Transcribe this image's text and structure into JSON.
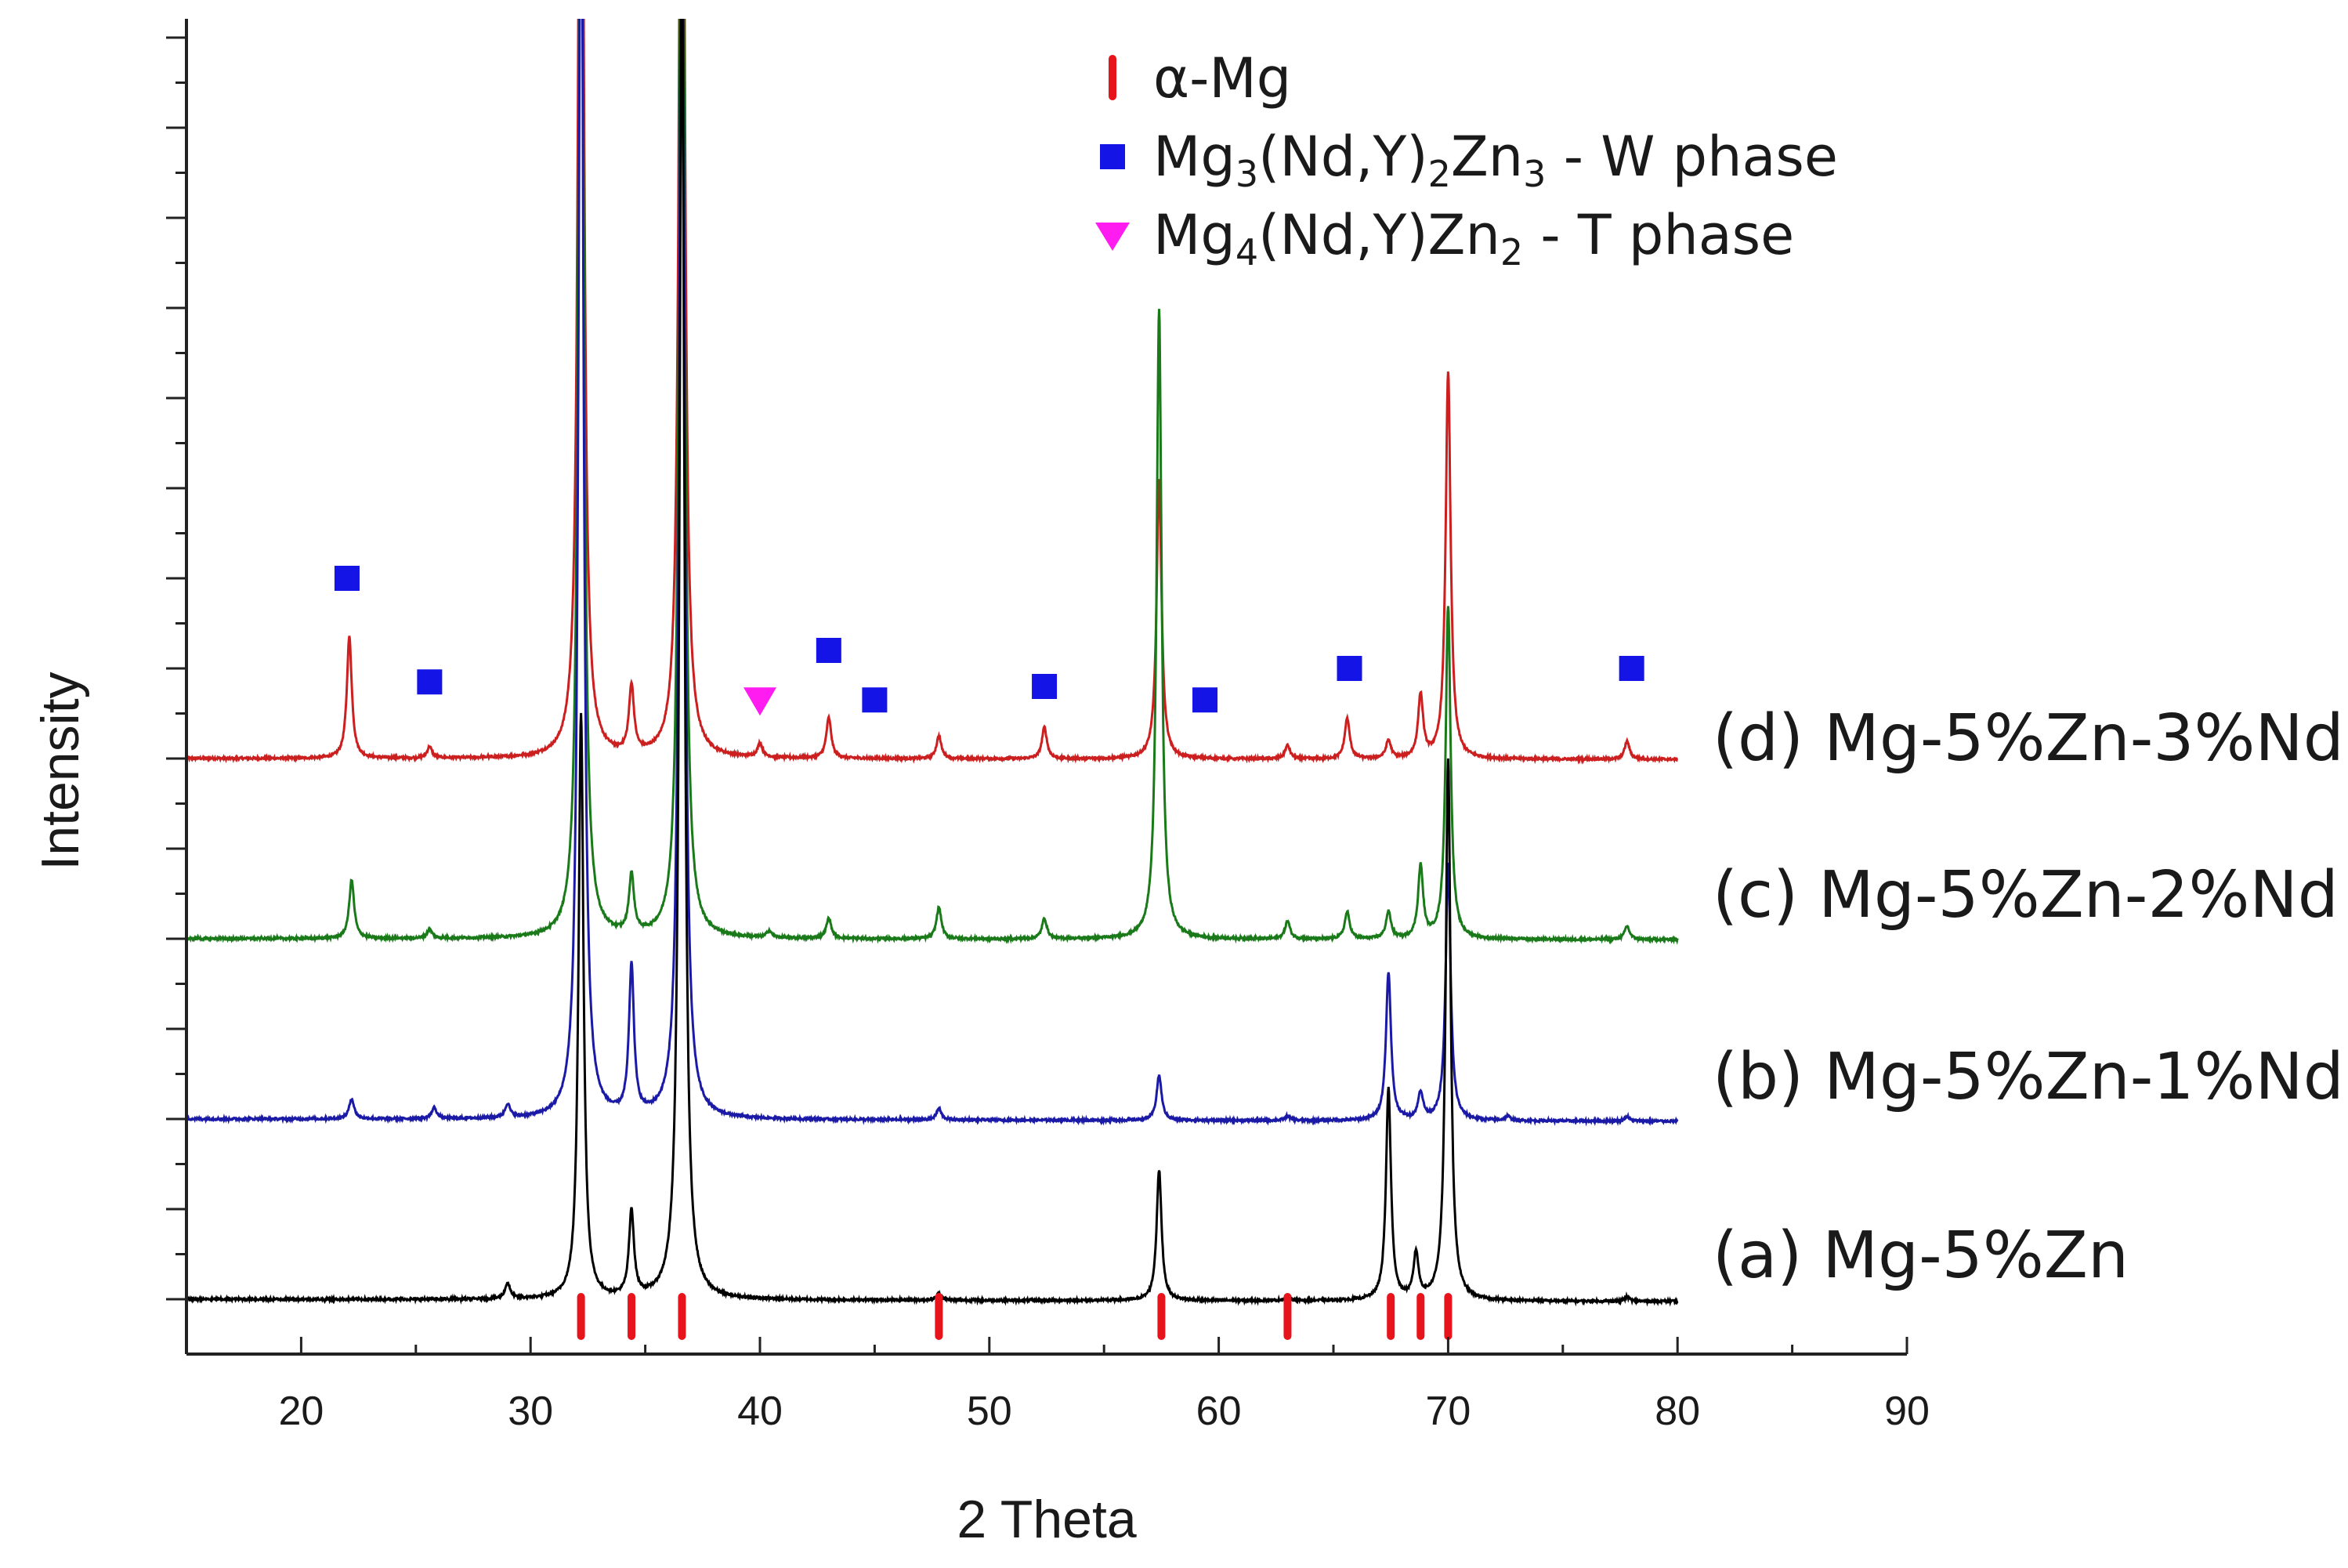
{
  "chart_data": {
    "type": "line",
    "title": "",
    "xlabel": "2 Theta",
    "ylabel": "Intensity",
    "xlim": [
      15,
      90
    ],
    "xticks": [
      20,
      30,
      40,
      50,
      60,
      70,
      80,
      90
    ],
    "grid": false,
    "y_tick_labels": false,
    "legend": {
      "placement": "top-center",
      "entries": [
        {
          "marker": "bar",
          "color": "#e8141c",
          "label": "α-Mg"
        },
        {
          "marker": "square",
          "color": "#1414e6",
          "base": "Mg",
          "sub1": "3",
          "mid": "(Nd,Y)",
          "sub2": "2",
          "mid2": "Zn",
          "sub3": "3",
          "tail": "- W phase",
          "label": "Mg3(Nd,Y)2Zn3 - W phase"
        },
        {
          "marker": "triangle",
          "color": "#ff1cf0",
          "base": "Mg",
          "sub1": "4",
          "mid": "(Nd,Y)Zn",
          "sub2": "2",
          "mid2": "",
          "sub3": "",
          "tail": "- T phase",
          "label": "Mg4(Nd,Y)Zn2 - T phase"
        }
      ]
    },
    "series": [
      {
        "name": "(a) Mg-5%Zn",
        "color": "#000000",
        "baseline": 0,
        "slope": -0.05,
        "noise": 0.05,
        "peaks": [
          [
            29.0,
            0.35
          ],
          [
            32.2,
            13.0
          ],
          [
            34.4,
            1.9
          ],
          [
            36.6,
            30.0
          ],
          [
            47.8,
            0.15
          ],
          [
            57.4,
            2.9
          ],
          [
            63.0,
            0.1
          ],
          [
            67.4,
            4.7
          ],
          [
            68.6,
            1.0
          ],
          [
            70.0,
            12.0
          ],
          [
            77.8,
            0.1
          ]
        ]
      },
      {
        "name": "(b) Mg-5%Zn-1%Nd",
        "color": "#1a1aa6",
        "baseline": 4,
        "slope": -0.05,
        "noise": 0.05,
        "peaks": [
          [
            22.2,
            0.45
          ],
          [
            25.8,
            0.25
          ],
          [
            29.0,
            0.3
          ],
          [
            32.2,
            30.0
          ],
          [
            34.4,
            3.3
          ],
          [
            36.6,
            30.0
          ],
          [
            47.8,
            0.25
          ],
          [
            57.4,
            1.0
          ],
          [
            63.0,
            0.1
          ],
          [
            67.4,
            3.3
          ],
          [
            68.8,
            0.6
          ],
          [
            70.0,
            5.7
          ],
          [
            72.6,
            0.1
          ],
          [
            77.8,
            0.1
          ]
        ]
      },
      {
        "name": "(c) Mg-5%Zn-2%Nd",
        "color": "#1a7a1a",
        "baseline": 8,
        "slope": -0.02,
        "noise": 0.05,
        "peaks": [
          [
            22.2,
            1.3
          ],
          [
            25.6,
            0.2
          ],
          [
            32.2,
            30.0
          ],
          [
            34.4,
            1.3
          ],
          [
            36.6,
            30.0
          ],
          [
            40.4,
            0.15
          ],
          [
            43.0,
            0.45
          ],
          [
            47.8,
            0.7
          ],
          [
            52.4,
            0.45
          ],
          [
            57.4,
            14.0
          ],
          [
            63.0,
            0.4
          ],
          [
            65.6,
            0.6
          ],
          [
            67.4,
            0.6
          ],
          [
            68.8,
            1.6
          ],
          [
            70.0,
            7.4
          ],
          [
            77.8,
            0.3
          ]
        ]
      },
      {
        "name": "(d) Mg-5%Zn-3%Nd",
        "color": "#cc1f1f",
        "baseline": 12,
        "slope": -0.02,
        "noise": 0.05,
        "peaks": [
          [
            22.1,
            2.7
          ],
          [
            25.6,
            0.25
          ],
          [
            32.2,
            30.0
          ],
          [
            34.4,
            1.5
          ],
          [
            36.6,
            30.0
          ],
          [
            40.0,
            0.3
          ],
          [
            43.0,
            0.9
          ],
          [
            47.8,
            0.5
          ],
          [
            52.4,
            0.7
          ],
          [
            57.4,
            6.2
          ],
          [
            63.0,
            0.3
          ],
          [
            65.6,
            0.9
          ],
          [
            67.4,
            0.4
          ],
          [
            68.8,
            1.4
          ],
          [
            70.0,
            8.6
          ],
          [
            77.8,
            0.4
          ]
        ]
      }
    ],
    "phase_markers": {
      "alpha_mg_positions": [
        32.2,
        34.4,
        36.6,
        47.8,
        57.5,
        63.0,
        67.5,
        68.8,
        70.0
      ],
      "w_phase": [
        [
          22.0,
          16.0
        ],
        [
          25.6,
          13.7
        ],
        [
          43.0,
          14.4
        ],
        [
          45.0,
          13.3
        ],
        [
          52.4,
          13.6
        ],
        [
          59.4,
          13.3
        ],
        [
          65.7,
          14.0
        ],
        [
          78.0,
          14.0
        ]
      ],
      "t_phase": [
        [
          40.0,
          13.3
        ]
      ]
    }
  }
}
